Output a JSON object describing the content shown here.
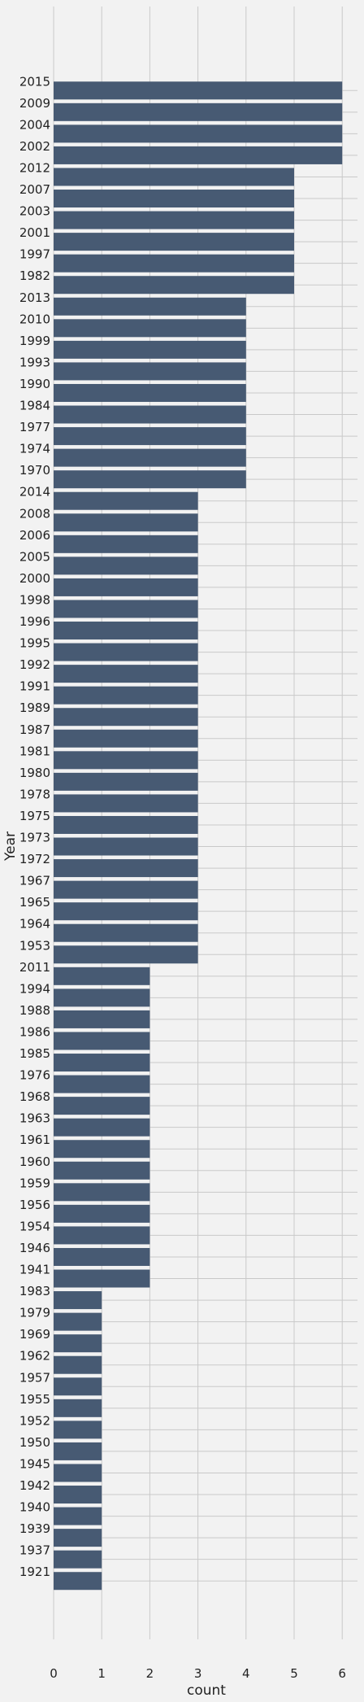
{
  "chart_data": {
    "type": "bar",
    "orientation": "horizontal",
    "xlabel": "count",
    "ylabel": "Year",
    "xlim": [
      0,
      6.3
    ],
    "xticks": [
      0,
      1,
      2,
      3,
      4,
      5,
      6
    ],
    "grid": true,
    "bar_color": "#475a73",
    "background_color": "#f2f2f2",
    "categories": [
      "2015",
      "2009",
      "2004",
      "2002",
      "2012",
      "2007",
      "2003",
      "2001",
      "1997",
      "1982",
      "2013",
      "2010",
      "1999",
      "1993",
      "1990",
      "1984",
      "1977",
      "1974",
      "1970",
      "2014",
      "2008",
      "2006",
      "2005",
      "2000",
      "1998",
      "1996",
      "1995",
      "1992",
      "1991",
      "1989",
      "1987",
      "1981",
      "1980",
      "1978",
      "1975",
      "1973",
      "1972",
      "1967",
      "1965",
      "1964",
      "1953",
      "2011",
      "1994",
      "1988",
      "1986",
      "1985",
      "1976",
      "1968",
      "1963",
      "1961",
      "1960",
      "1959",
      "1956",
      "1954",
      "1946",
      "1941",
      "1983",
      "1979",
      "1969",
      "1962",
      "1957",
      "1955",
      "1952",
      "1950",
      "1945",
      "1942",
      "1940",
      "1939",
      "1937",
      "1921"
    ],
    "values": [
      6,
      6,
      6,
      6,
      5,
      5,
      5,
      5,
      5,
      5,
      4,
      4,
      4,
      4,
      4,
      4,
      4,
      4,
      4,
      3,
      3,
      3,
      3,
      3,
      3,
      3,
      3,
      3,
      3,
      3,
      3,
      3,
      3,
      3,
      3,
      3,
      3,
      3,
      3,
      3,
      3,
      2,
      2,
      2,
      2,
      2,
      2,
      2,
      2,
      2,
      2,
      2,
      2,
      2,
      2,
      2,
      1,
      1,
      1,
      1,
      1,
      1,
      1,
      1,
      1,
      1,
      1,
      1,
      1,
      1
    ]
  }
}
